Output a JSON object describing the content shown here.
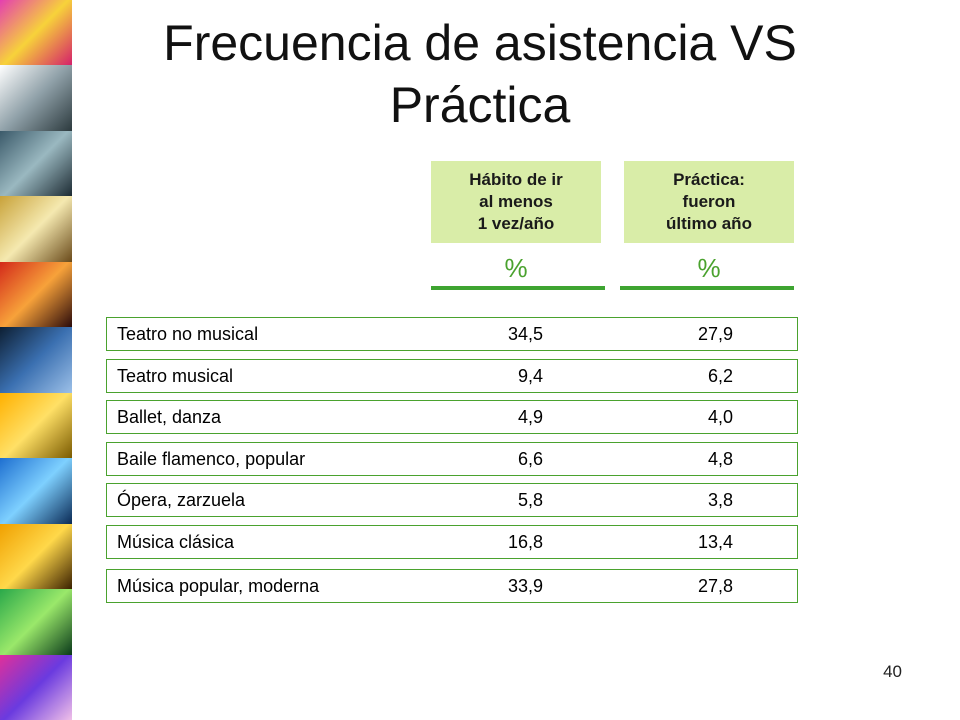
{
  "slide": {
    "title": "Frecuencia de asistencia VS Práctica",
    "page_number": "40"
  },
  "columns": [
    {
      "header": "Hábito de ir\nal menos\n1 vez/año",
      "unit": "%"
    },
    {
      "header": "Práctica:\nfueron\n último año",
      "unit": "%"
    }
  ],
  "rows": [
    {
      "label": "Teatro no musical",
      "habito": "34,5",
      "practica": "27,9"
    },
    {
      "label": "Teatro musical",
      "habito": "9,4",
      "practica": "6,2"
    },
    {
      "label": "Ballet, danza",
      "habito": "4,9",
      "practica": "4,0"
    },
    {
      "label": "Baile flamenco, popular",
      "habito": "6,6",
      "practica": "4,8"
    },
    {
      "label": "Ópera, zarzuela",
      "habito": "5,8",
      "practica": "3,8"
    },
    {
      "label": "Música clásica",
      "habito": "16,8",
      "practica": "13,4"
    },
    {
      "label": "Música popular, moderna",
      "habito": "33,9",
      "practica": "27,8"
    }
  ]
}
